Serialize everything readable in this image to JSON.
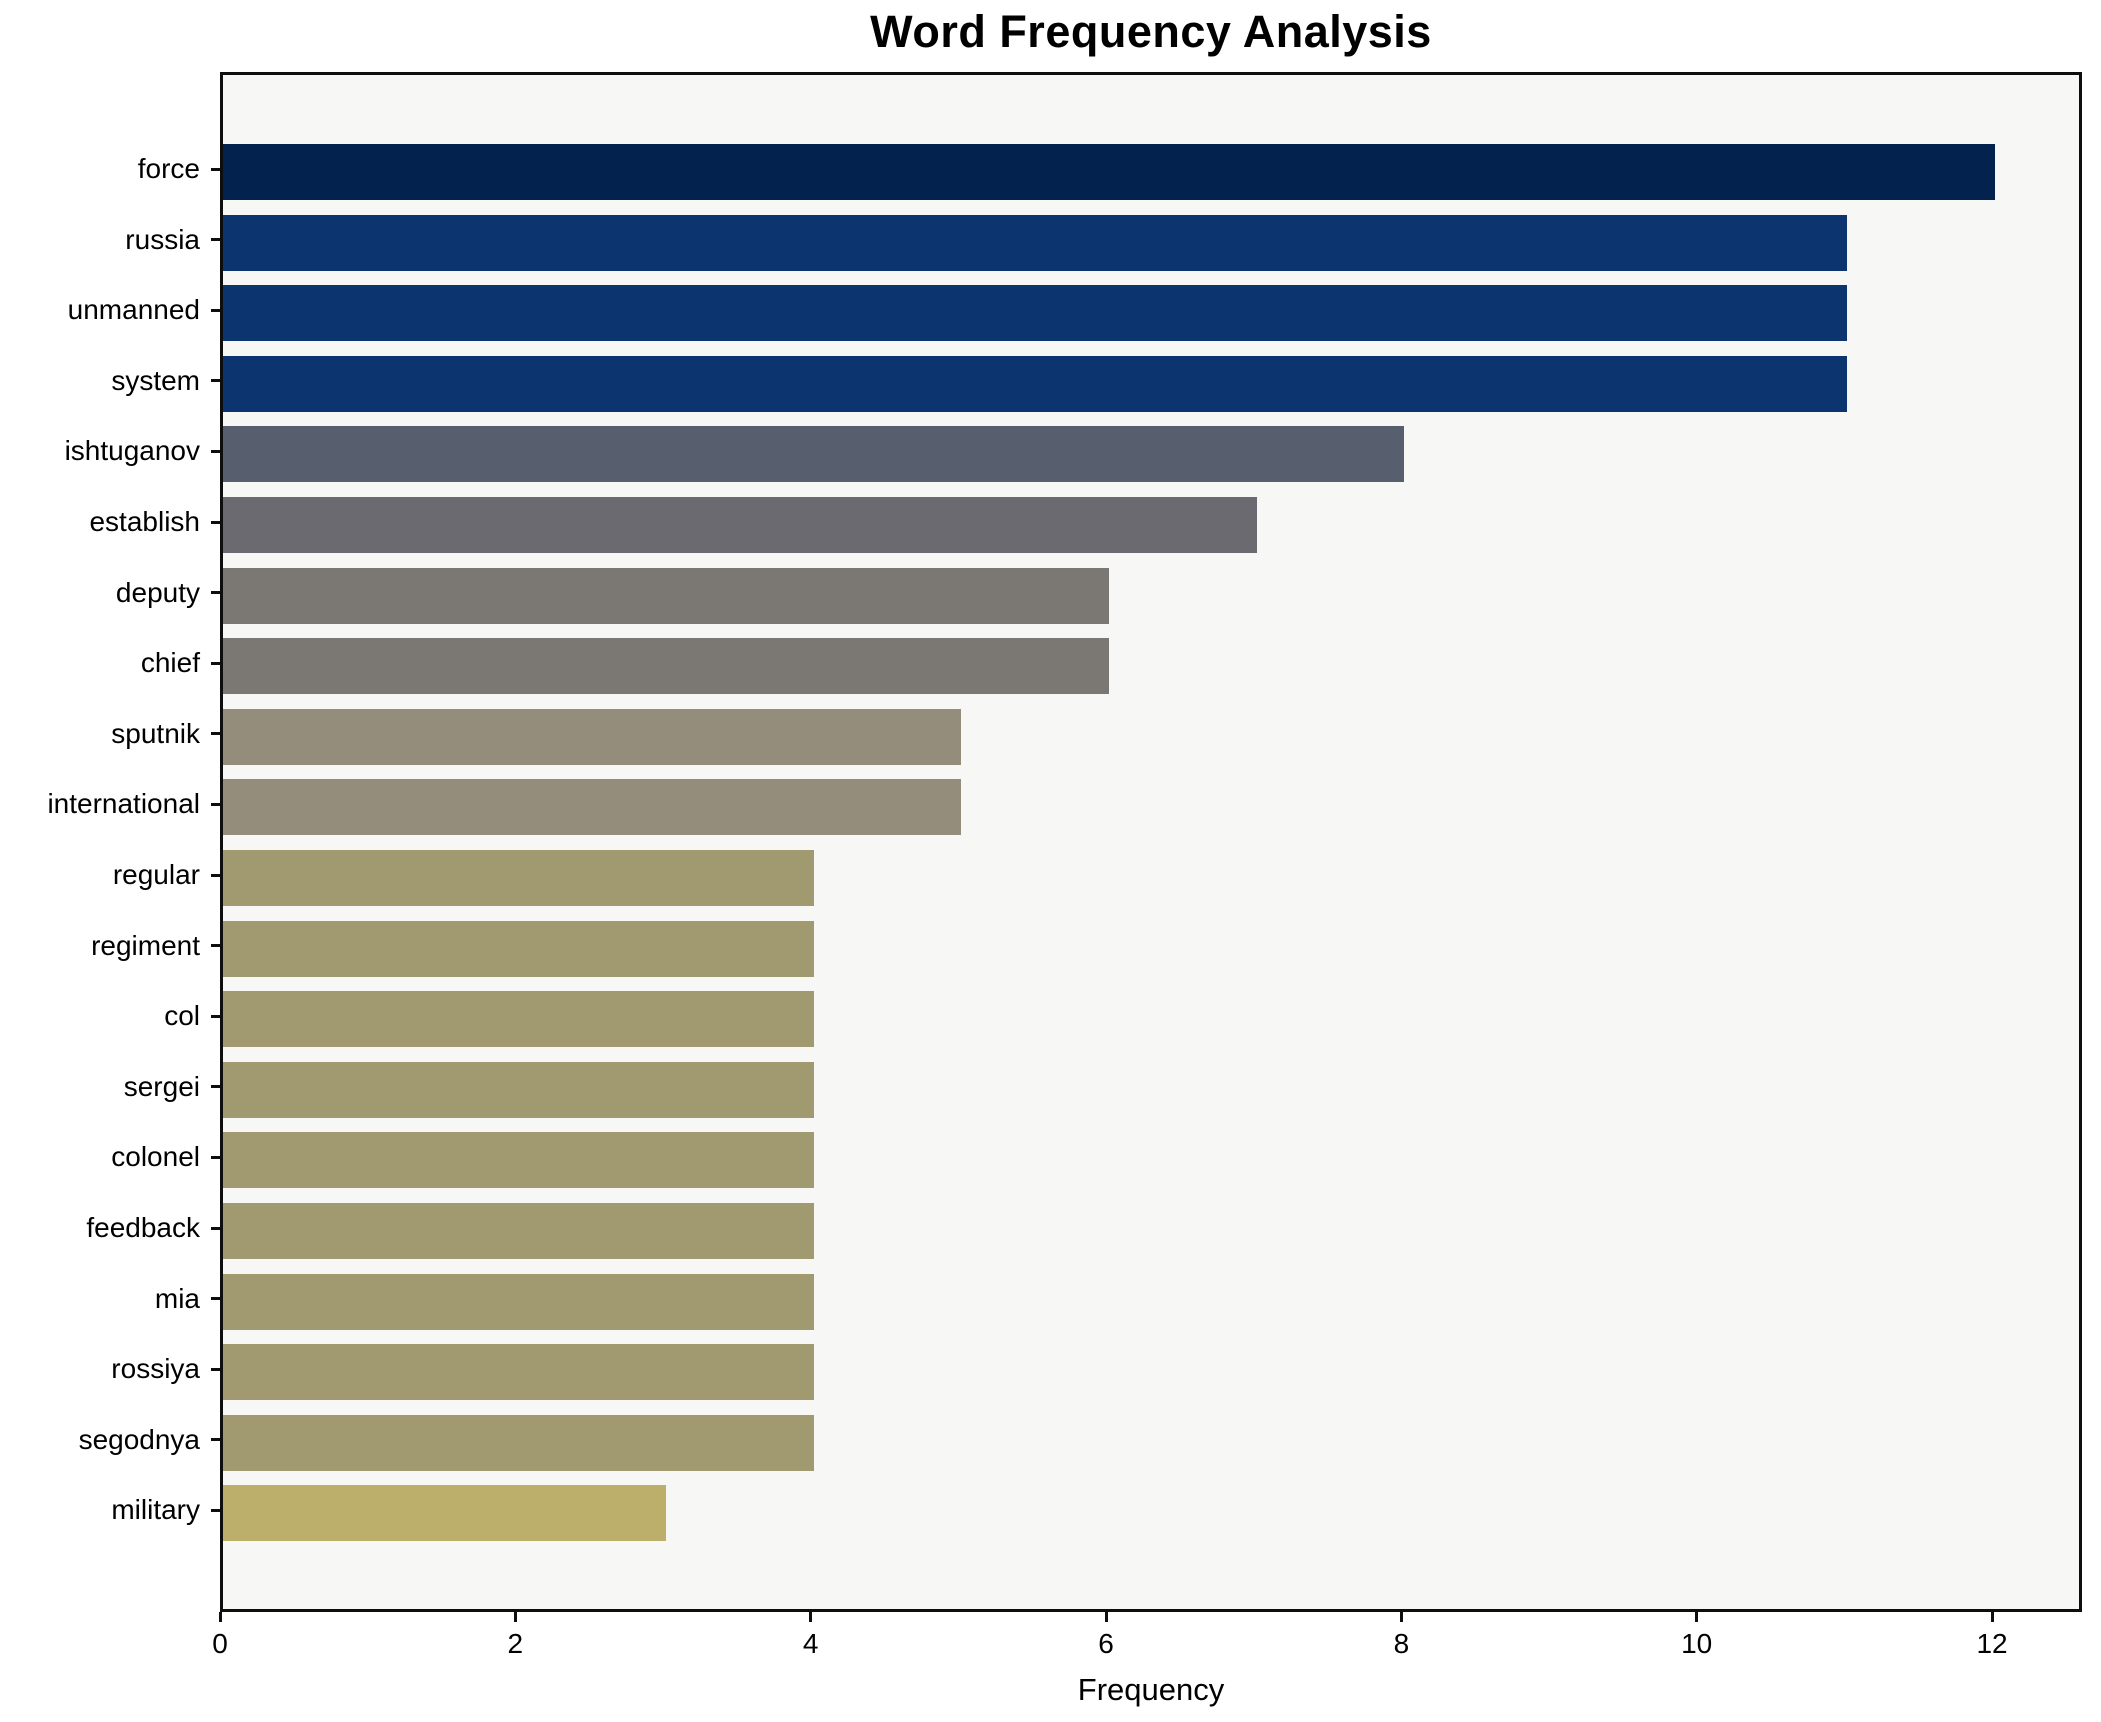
{
  "chart_data": {
    "type": "bar",
    "orientation": "horizontal",
    "title": "Word Frequency Analysis",
    "xlabel": "Frequency",
    "ylabel": "",
    "grid": false,
    "legend": false,
    "xlim": [
      0,
      12.6
    ],
    "xticks": [
      {
        "value": 0,
        "label": "0"
      },
      {
        "value": 2,
        "label": "2"
      },
      {
        "value": 4,
        "label": "4"
      },
      {
        "value": 6,
        "label": "6"
      },
      {
        "value": 8,
        "label": "8"
      },
      {
        "value": 10,
        "label": "10"
      },
      {
        "value": 12,
        "label": "12"
      }
    ],
    "categories": [
      "force",
      "russia",
      "unmanned",
      "system",
      "ishtuganov",
      "establish",
      "deputy",
      "chief",
      "sputnik",
      "international",
      "regular",
      "regiment",
      "col",
      "sergei",
      "colonel",
      "feedback",
      "mia",
      "rossiya",
      "segodnya",
      "military"
    ],
    "values": [
      12,
      11,
      11,
      11,
      8,
      7,
      6,
      6,
      5,
      5,
      4,
      4,
      4,
      4,
      4,
      4,
      4,
      4,
      4,
      3
    ],
    "bar_colors": [
      "#03234e",
      "#0c356f",
      "#0c356f",
      "#0c356f",
      "#575f6e",
      "#6a6a70",
      "#7b7873",
      "#7b7873",
      "#948d7b",
      "#948d7b",
      "#a19a70",
      "#a19a70",
      "#a19a70",
      "#a19a70",
      "#a19a70",
      "#a19a70",
      "#a19a70",
      "#a19a70",
      "#a19a70",
      "#bcae6b"
    ],
    "colors": {
      "figure_bg": "#ffffff",
      "plot_bg": "#f7f7f5",
      "spine": "#0e0e0e",
      "text": "#000000"
    }
  }
}
